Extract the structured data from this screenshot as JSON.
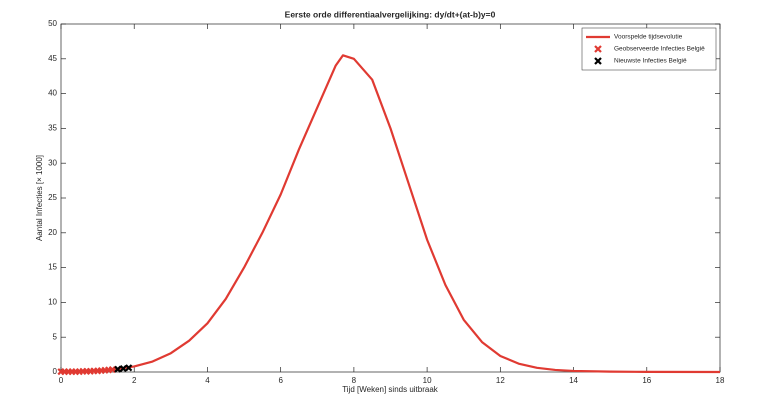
{
  "chart_data": {
    "type": "line",
    "title": "Eerste orde differentiaalvergelijking: dy/dt+(at-b)y=0",
    "x_label": "Tijd [Weken] sinds uitbraak",
    "y_label": "Aantal Infecties [× 1000]",
    "xlim": [
      0,
      18
    ],
    "ylim": [
      0,
      50
    ],
    "xticks": [
      0,
      2,
      4,
      6,
      8,
      10,
      12,
      14,
      16,
      18
    ],
    "yticks": [
      0,
      5,
      10,
      15,
      20,
      25,
      30,
      35,
      40,
      45,
      50
    ],
    "grid": false,
    "legend": "top-right",
    "series": [
      {
        "name": "Voorspelde tijdsevolutie",
        "color": "#e03a32",
        "mode": "line",
        "x": [
          0,
          0.5,
          1,
          1.5,
          2,
          2.5,
          3,
          3.5,
          4,
          4.5,
          5,
          5.5,
          6,
          6.5,
          7,
          7.5,
          7.7,
          8,
          8.5,
          9,
          9.5,
          10,
          10.5,
          11,
          11.5,
          12,
          12.5,
          13,
          13.5,
          14,
          15,
          16,
          18
        ],
        "values": [
          0.1,
          0.15,
          0.25,
          0.4,
          0.8,
          1.5,
          2.7,
          4.5,
          7,
          10.5,
          15,
          20,
          25.5,
          32,
          38,
          44,
          45.5,
          45,
          42,
          35,
          27,
          19,
          12.5,
          7.5,
          4.3,
          2.3,
          1.2,
          0.6,
          0.3,
          0.15,
          0.05,
          0.02,
          0
        ]
      },
      {
        "name": "Geobserveerde Infecties België",
        "color": "#e03a32",
        "mode": "marker",
        "x": [
          0,
          0.1,
          0.2,
          0.3,
          0.4,
          0.5,
          0.6,
          0.7,
          0.8,
          0.9,
          1.0,
          1.1,
          1.2,
          1.3,
          1.4
        ],
        "values": [
          0.05,
          0.05,
          0.05,
          0.05,
          0.05,
          0.05,
          0.1,
          0.1,
          0.1,
          0.15,
          0.15,
          0.2,
          0.25,
          0.3,
          0.35
        ]
      },
      {
        "name": "Nieuwste Infecties België",
        "color": "#000000",
        "mode": "marker",
        "x": [
          1.55,
          1.7,
          1.85
        ],
        "values": [
          0.4,
          0.5,
          0.6
        ]
      }
    ]
  }
}
